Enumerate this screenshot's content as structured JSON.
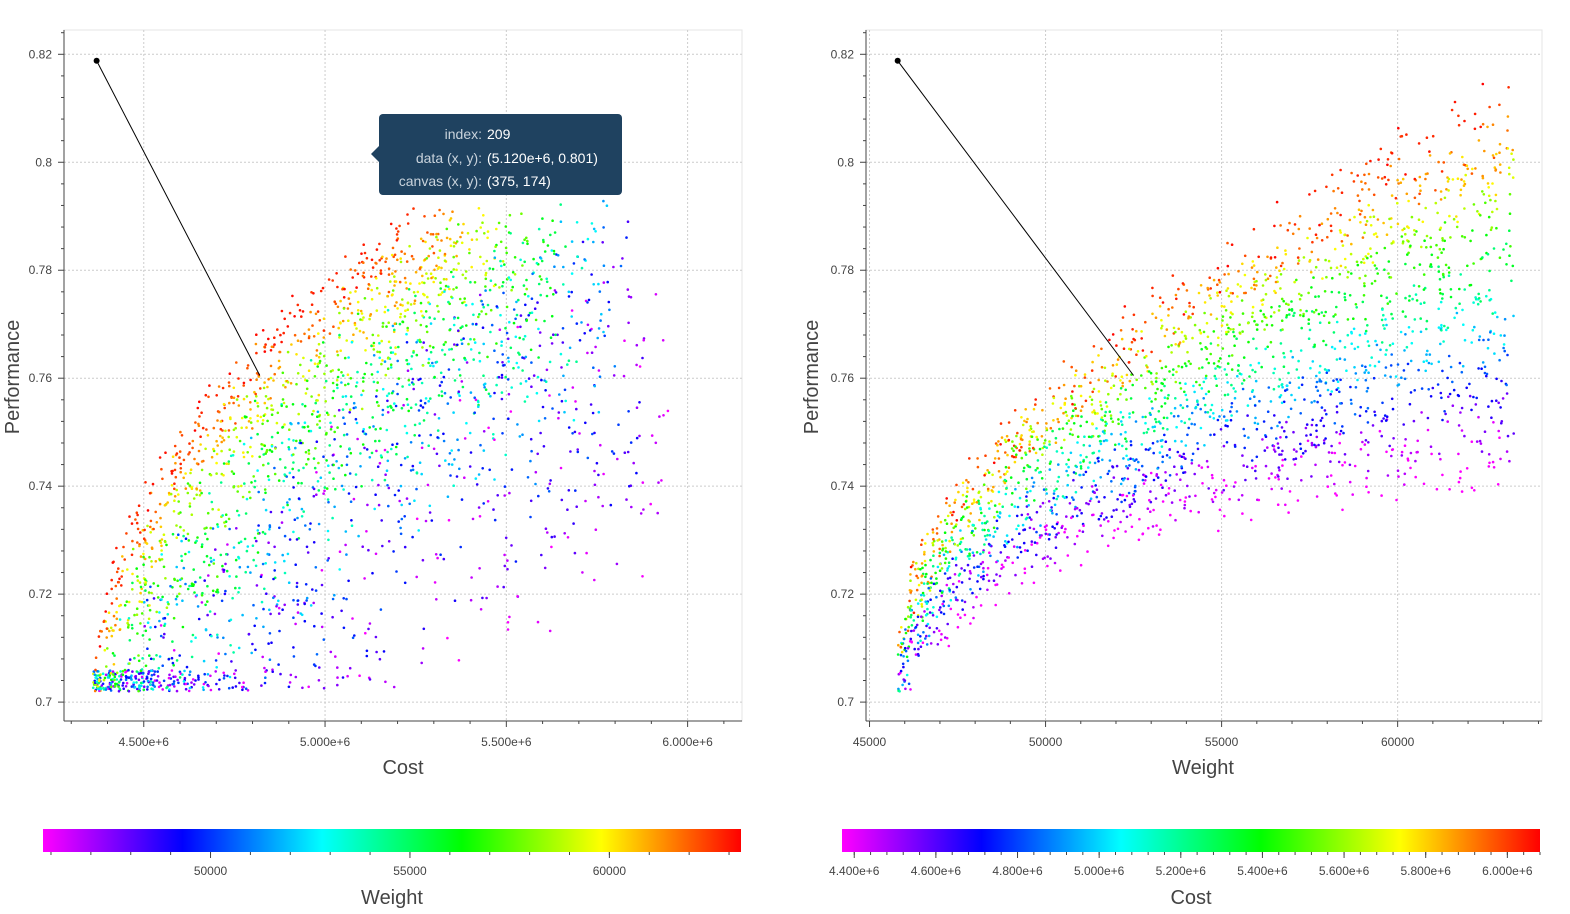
{
  "chart_data": [
    {
      "type": "scatter",
      "xlabel": "Cost",
      "ylabel": "Performance",
      "x_ticks": [
        "4.500e+6",
        "5.000e+6",
        "5.500e+6",
        "6.000e+6"
      ],
      "y_ticks": [
        "0.7",
        "0.72",
        "0.74",
        "0.76",
        "0.78",
        "0.8",
        "0.82"
      ],
      "xlim": [
        4280000,
        6150000
      ],
      "ylim": [
        0.6965,
        0.8245
      ],
      "color_by": "Weight",
      "colorbar": {
        "title": "Weight",
        "range": [
          45800,
          63300
        ],
        "ticks": [
          "50000",
          "55000",
          "60000"
        ],
        "palette": [
          "#ff00ff",
          "#0000ff",
          "#00ffff",
          "#00ff00",
          "#ffff00",
          "#ff0000"
        ]
      },
      "highlight_point": [
        4370000,
        0.8188
      ],
      "annotation_line": [
        [
          4370000,
          0.8188
        ],
        [
          4820000,
          0.7605
        ]
      ],
      "tooltip": {
        "index_label": "index:",
        "index_value": "209",
        "data_label": "data (x, y):",
        "data_value": "(5.120e+6, 0.801)",
        "canvas_label": "canvas (x, y):",
        "canvas_value": "(375, 174)"
      },
      "n_points": 2500
    },
    {
      "type": "scatter",
      "xlabel": "Weight",
      "ylabel": "Performance",
      "x_ticks": [
        "45000",
        "50000",
        "55000",
        "60000"
      ],
      "y_ticks": [
        "0.7",
        "0.72",
        "0.74",
        "0.76",
        "0.78",
        "0.8",
        "0.82"
      ],
      "xlim": [
        44900,
        64100
      ],
      "ylim": [
        0.6965,
        0.8245
      ],
      "color_by": "Cost",
      "colorbar": {
        "title": "Cost",
        "range": [
          4370000,
          6080000
        ],
        "ticks": [
          "4.400e+6",
          "4.600e+6",
          "4.800e+6",
          "5.000e+6",
          "5.200e+6",
          "5.400e+6",
          "5.600e+6",
          "5.800e+6",
          "6.000e+6"
        ],
        "palette": [
          "#ff00ff",
          "#0000ff",
          "#00ffff",
          "#00ff00",
          "#ffff00",
          "#ff0000"
        ]
      },
      "highlight_point": [
        45800,
        0.8188
      ],
      "annotation_line": [
        [
          45800,
          0.8188
        ],
        [
          52500,
          0.7605
        ]
      ],
      "n_points": 2500
    }
  ]
}
